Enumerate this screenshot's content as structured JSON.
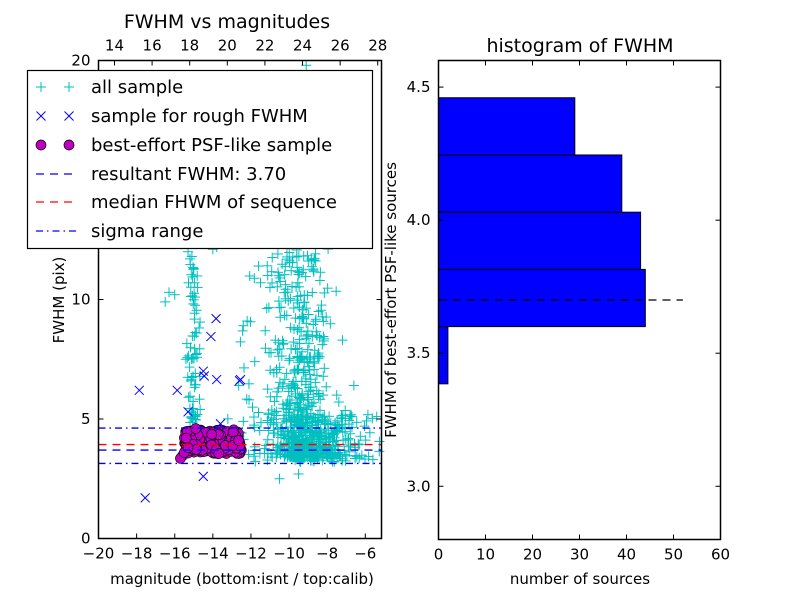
{
  "chart_data": [
    {
      "type": "scatter",
      "title": "FWHM vs magnitudes",
      "xlabel": "magnitude (bottom:isnt / top:calib)",
      "ylabel": "FWHM (pix)",
      "xlim": [
        -20,
        -5.15
      ],
      "ylim": [
        0,
        20
      ],
      "xticks": [
        -20,
        -18,
        -16,
        -14,
        -12,
        -10,
        -8,
        -6
      ],
      "xtick_labels": [
        "−20",
        "−18",
        "−16",
        "−14",
        "−12",
        "−10",
        "−8",
        "−6"
      ],
      "yticks": [
        0,
        5,
        10,
        20
      ],
      "ytick_labels": [
        "0",
        "5",
        "10",
        "20"
      ],
      "top_axis": {
        "xlim": [
          13.15,
          28.2
        ],
        "xticks": [
          14,
          16,
          18,
          20,
          22,
          24,
          26,
          28
        ],
        "xtick_labels": [
          "14",
          "16",
          "18",
          "20",
          "22",
          "24",
          "26",
          "28"
        ]
      },
      "legend": {
        "location": "upper-left",
        "entries": [
          {
            "label": "all sample",
            "marker": "plus",
            "color": "#00bfbf"
          },
          {
            "label": "sample for rough FWHM",
            "marker": "x",
            "color": "#0000ff"
          },
          {
            "label": "best-effort PSF-like sample",
            "marker": "circle",
            "color": "#bf00bf"
          },
          {
            "label": "resultant FWHM: 3.70",
            "marker": "dashed",
            "color": "#0000ff"
          },
          {
            "label": "median FHWM of sequence",
            "marker": "dashed",
            "color": "#ff0000"
          },
          {
            "label": "sigma range",
            "marker": "dashdot",
            "color": "#0000ff"
          }
        ]
      },
      "hlines": [
        {
          "name": "resultant-fwhm",
          "y": 3.7,
          "style": "dashed",
          "color": "#0000ff"
        },
        {
          "name": "median-fwhm",
          "y": 3.93,
          "style": "dashed",
          "color": "#ff0000"
        },
        {
          "name": "sigma-upper",
          "y": 4.62,
          "style": "dashdot",
          "color": "#0000ff"
        },
        {
          "name": "sigma-lower",
          "y": 3.14,
          "style": "dashdot",
          "color": "#0000ff"
        }
      ],
      "series": [
        {
          "name": "all sample",
          "marker": "plus",
          "color": "#00bfbf",
          "clusters": [
            {
              "n": 520,
              "x_mean": -9.3,
              "x_sd": 0.75,
              "y_min": 3.4,
              "y_max": 13.5,
              "y_skew": 2.2
            },
            {
              "n": 260,
              "x_mean": -8.6,
              "x_sd": 1.4,
              "y_min": 3.2,
              "y_max": 5.2,
              "y_skew": 1.0
            },
            {
              "n": 70,
              "x_mean": -15.0,
              "x_sd": 0.2,
              "y_min": 4.8,
              "y_max": 11.5,
              "y_skew": 1.3
            },
            {
              "n": 60,
              "x_mean": -11.3,
              "x_sd": 0.9,
              "y_min": 3.5,
              "y_max": 11.5,
              "y_skew": 1.5
            }
          ],
          "points": [
            [
              -9.1,
              19.8
            ],
            [
              -9.9,
              12.3
            ],
            [
              -9.5,
              13.2
            ],
            [
              -8.8,
              14.1
            ],
            [
              -9.2,
              15.5
            ],
            [
              -9.7,
              16.8
            ],
            [
              -10.2,
              14.6
            ],
            [
              -15.3,
              12.0
            ],
            [
              -15.1,
              11.8
            ],
            [
              -15.0,
              11.3
            ],
            [
              -15.2,
              11.7
            ],
            [
              -14.0,
              12.1
            ],
            [
              -13.8,
              12.2
            ],
            [
              -16.3,
              10.3
            ],
            [
              -16.0,
              10.2
            ],
            [
              -16.5,
              9.9
            ],
            [
              -12.2,
              9.1
            ],
            [
              -11.6,
              11.4
            ],
            [
              -11.5,
              10.7
            ],
            [
              -7.2,
              8.3
            ],
            [
              -6.6,
              6.4
            ],
            [
              -7.5,
              6.0
            ],
            [
              -10.5,
              2.5
            ],
            [
              -9.5,
              2.7
            ],
            [
              -5.6,
              3.3
            ],
            [
              -5.4,
              5.1
            ],
            [
              -11.0,
              10.5
            ],
            [
              -11.8,
              7.4
            ],
            [
              -12.1,
              5.8
            ],
            [
              -12.4,
              4.9
            ]
          ]
        },
        {
          "name": "sample for rough FWHM",
          "marker": "x",
          "color": "#0000ff",
          "points": [
            [
              -17.86,
              6.2
            ],
            [
              -15.87,
              6.2
            ],
            [
              -13.83,
              9.2
            ],
            [
              -14.1,
              8.45
            ],
            [
              -14.5,
              7.0
            ],
            [
              -14.45,
              6.8
            ],
            [
              -13.8,
              6.65
            ],
            [
              -12.6,
              6.6
            ],
            [
              -12.55,
              6.65
            ],
            [
              -15.3,
              5.3
            ],
            [
              -13.6,
              4.8
            ],
            [
              -14.5,
              2.6
            ],
            [
              -17.55,
              1.7
            ]
          ]
        },
        {
          "name": "best-effort PSF-like sample",
          "marker": "circle",
          "color": "#bf00bf",
          "clusters": [
            {
              "n": 230,
              "x_min": -15.5,
              "x_max": -12.5,
              "y_min": 3.55,
              "y_max": 4.55
            }
          ],
          "points": [
            [
              -15.6,
              3.45
            ],
            [
              -15.7,
              3.35
            ],
            [
              -15.5,
              3.6
            ],
            [
              -15.3,
              3.8
            ],
            [
              -15.4,
              4.2
            ],
            [
              -14.9,
              4.6
            ]
          ]
        }
      ]
    },
    {
      "type": "bar",
      "orientation": "horizontal",
      "title": "histogram of FWHM",
      "xlabel": "number of sources",
      "ylabel": "FWHM of best-effort PSF-like sources",
      "xlim": [
        0,
        60
      ],
      "ylim": [
        2.8,
        4.6
      ],
      "xticks": [
        0,
        10,
        20,
        30,
        40,
        50,
        60
      ],
      "xtick_labels": [
        "0",
        "10",
        "20",
        "30",
        "40",
        "50",
        "60"
      ],
      "yticks": [
        3.0,
        3.5,
        4.0,
        4.5
      ],
      "ytick_labels": [
        "3.0",
        "3.5",
        "4.0",
        "4.5"
      ],
      "bar_color": "#0000ff",
      "bins": [
        {
          "y0": 3.385,
          "y1": 3.6,
          "count": 2
        },
        {
          "y0": 3.6,
          "y1": 3.815,
          "count": 44
        },
        {
          "y0": 3.815,
          "y1": 4.03,
          "count": 43
        },
        {
          "y0": 4.03,
          "y1": 4.245,
          "count": 39
        },
        {
          "y0": 4.245,
          "y1": 4.46,
          "count": 29
        }
      ],
      "hline": {
        "y": 3.7,
        "x_max": 52,
        "style": "dashed",
        "color": "#000000"
      }
    }
  ]
}
